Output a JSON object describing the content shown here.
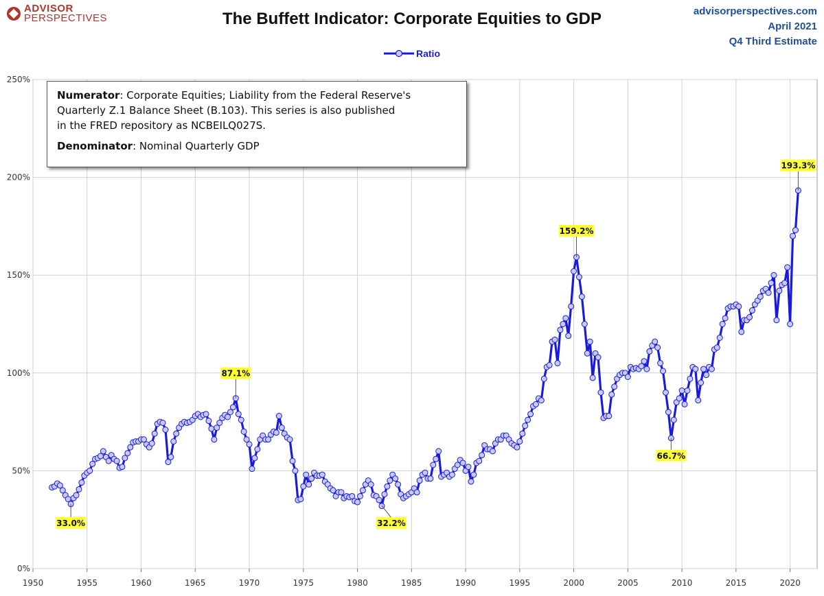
{
  "header": {
    "logo_line1": "ADVISOR",
    "logo_line2": "PERSPECTIVES",
    "site": "advisorperspectives.com",
    "date": "April 2021",
    "estimate": "Q4 Third Estimate"
  },
  "note": {
    "numerator_label": "Numerator",
    "numerator_line1": ": Corporate Equities; Liability from the Federal Reserve's",
    "numerator_line2": "Quarterly Z.1 Balance Sheet (B.103). This series is also published",
    "numerator_line3": "in the FRED repository  as NCBEILQ027S.",
    "denominator_label": "Denominator",
    "denominator_text": ": Nominal Quarterly GDP"
  },
  "colors": {
    "series": "#1a1adf",
    "marker_fill": "#c5c9ff",
    "annotation_bg": "#ffff33",
    "grid": "#d0d0d0",
    "meta_text": "#1f4e9c"
  },
  "chart_data": {
    "type": "line",
    "title": "The Buffett Indicator: Corporate Equities to GDP",
    "xlabel": "",
    "ylabel": "",
    "xlim": [
      1950,
      2022.5
    ],
    "ylim": [
      0,
      2.5
    ],
    "x_ticks": [
      1950,
      1955,
      1960,
      1965,
      1970,
      1975,
      1980,
      1985,
      1990,
      1995,
      2000,
      2005,
      2010,
      2015,
      2020
    ],
    "y_ticks": [
      0,
      0.5,
      1.0,
      1.5,
      2.0,
      2.5
    ],
    "y_tick_labels": [
      "0%",
      "50%",
      "100%",
      "150%",
      "200%",
      "250%"
    ],
    "grid": true,
    "legend_position": "top-center",
    "series": [
      {
        "name": "Ratio",
        "points": [
          [
            1951.75,
            0.415
          ],
          [
            1952.0,
            0.42
          ],
          [
            1952.25,
            0.435
          ],
          [
            1952.5,
            0.425
          ],
          [
            1952.75,
            0.4
          ],
          [
            1953.0,
            0.375
          ],
          [
            1953.25,
            0.355
          ],
          [
            1953.5,
            0.33
          ],
          [
            1953.75,
            0.36
          ],
          [
            1954.0,
            0.375
          ],
          [
            1954.25,
            0.405
          ],
          [
            1954.5,
            0.44
          ],
          [
            1954.75,
            0.475
          ],
          [
            1955.0,
            0.49
          ],
          [
            1955.25,
            0.5
          ],
          [
            1955.5,
            0.535
          ],
          [
            1955.75,
            0.56
          ],
          [
            1956.0,
            0.565
          ],
          [
            1956.25,
            0.575
          ],
          [
            1956.5,
            0.6
          ],
          [
            1956.75,
            0.57
          ],
          [
            1957.0,
            0.55
          ],
          [
            1957.25,
            0.58
          ],
          [
            1957.5,
            0.56
          ],
          [
            1957.75,
            0.55
          ],
          [
            1958.0,
            0.515
          ],
          [
            1958.25,
            0.52
          ],
          [
            1958.5,
            0.565
          ],
          [
            1958.75,
            0.59
          ],
          [
            1959.0,
            0.62
          ],
          [
            1959.25,
            0.645
          ],
          [
            1959.5,
            0.65
          ],
          [
            1959.75,
            0.65
          ],
          [
            1960.0,
            0.66
          ],
          [
            1960.25,
            0.66
          ],
          [
            1960.5,
            0.635
          ],
          [
            1960.75,
            0.62
          ],
          [
            1961.0,
            0.64
          ],
          [
            1961.25,
            0.69
          ],
          [
            1961.5,
            0.74
          ],
          [
            1961.75,
            0.75
          ],
          [
            1962.0,
            0.745
          ],
          [
            1962.25,
            0.71
          ],
          [
            1962.5,
            0.545
          ],
          [
            1962.75,
            0.57
          ],
          [
            1963.0,
            0.65
          ],
          [
            1963.25,
            0.69
          ],
          [
            1963.5,
            0.72
          ],
          [
            1963.75,
            0.74
          ],
          [
            1964.0,
            0.75
          ],
          [
            1964.25,
            0.745
          ],
          [
            1964.5,
            0.75
          ],
          [
            1964.75,
            0.76
          ],
          [
            1965.0,
            0.78
          ],
          [
            1965.25,
            0.79
          ],
          [
            1965.5,
            0.775
          ],
          [
            1965.75,
            0.785
          ],
          [
            1966.0,
            0.79
          ],
          [
            1966.25,
            0.755
          ],
          [
            1966.5,
            0.715
          ],
          [
            1966.75,
            0.66
          ],
          [
            1967.0,
            0.72
          ],
          [
            1967.25,
            0.745
          ],
          [
            1967.5,
            0.77
          ],
          [
            1967.75,
            0.785
          ],
          [
            1968.0,
            0.775
          ],
          [
            1968.25,
            0.8
          ],
          [
            1968.5,
            0.825
          ],
          [
            1968.75,
            0.871
          ],
          [
            1969.0,
            0.79
          ],
          [
            1969.25,
            0.76
          ],
          [
            1969.5,
            0.7
          ],
          [
            1969.75,
            0.66
          ],
          [
            1970.0,
            0.635
          ],
          [
            1970.25,
            0.51
          ],
          [
            1970.5,
            0.565
          ],
          [
            1970.75,
            0.61
          ],
          [
            1971.0,
            0.66
          ],
          [
            1971.25,
            0.68
          ],
          [
            1971.5,
            0.66
          ],
          [
            1971.75,
            0.66
          ],
          [
            1972.0,
            0.685
          ],
          [
            1972.25,
            0.7
          ],
          [
            1972.5,
            0.695
          ],
          [
            1972.75,
            0.78
          ],
          [
            1973.0,
            0.72
          ],
          [
            1973.25,
            0.69
          ],
          [
            1973.5,
            0.67
          ],
          [
            1973.75,
            0.66
          ],
          [
            1974.0,
            0.55
          ],
          [
            1974.25,
            0.5
          ],
          [
            1974.5,
            0.35
          ],
          [
            1974.75,
            0.355
          ],
          [
            1975.0,
            0.42
          ],
          [
            1975.25,
            0.48
          ],
          [
            1975.5,
            0.43
          ],
          [
            1975.75,
            0.46
          ],
          [
            1976.0,
            0.49
          ],
          [
            1976.25,
            0.475
          ],
          [
            1976.5,
            0.475
          ],
          [
            1976.75,
            0.48
          ],
          [
            1977.0,
            0.445
          ],
          [
            1977.25,
            0.43
          ],
          [
            1977.5,
            0.41
          ],
          [
            1977.75,
            0.4
          ],
          [
            1978.0,
            0.37
          ],
          [
            1978.25,
            0.39
          ],
          [
            1978.5,
            0.39
          ],
          [
            1978.75,
            0.36
          ],
          [
            1979.0,
            0.37
          ],
          [
            1979.25,
            0.365
          ],
          [
            1979.5,
            0.37
          ],
          [
            1979.75,
            0.345
          ],
          [
            1980.0,
            0.34
          ],
          [
            1980.25,
            0.37
          ],
          [
            1980.5,
            0.4
          ],
          [
            1980.75,
            0.43
          ],
          [
            1981.0,
            0.45
          ],
          [
            1981.25,
            0.43
          ],
          [
            1981.5,
            0.375
          ],
          [
            1981.75,
            0.37
          ],
          [
            1982.0,
            0.35
          ],
          [
            1982.25,
            0.32
          ],
          [
            1982.5,
            0.38
          ],
          [
            1982.75,
            0.42
          ],
          [
            1983.0,
            0.45
          ],
          [
            1983.25,
            0.48
          ],
          [
            1983.5,
            0.46
          ],
          [
            1983.75,
            0.43
          ],
          [
            1984.0,
            0.38
          ],
          [
            1984.25,
            0.36
          ],
          [
            1984.5,
            0.37
          ],
          [
            1984.75,
            0.38
          ],
          [
            1985.0,
            0.39
          ],
          [
            1985.25,
            0.41
          ],
          [
            1985.5,
            0.39
          ],
          [
            1985.75,
            0.45
          ],
          [
            1986.0,
            0.48
          ],
          [
            1986.25,
            0.49
          ],
          [
            1986.5,
            0.46
          ],
          [
            1986.75,
            0.46
          ],
          [
            1987.0,
            0.53
          ],
          [
            1987.25,
            0.56
          ],
          [
            1987.5,
            0.6
          ],
          [
            1987.75,
            0.47
          ],
          [
            1988.0,
            0.48
          ],
          [
            1988.25,
            0.49
          ],
          [
            1988.5,
            0.47
          ],
          [
            1988.75,
            0.48
          ],
          [
            1989.0,
            0.51
          ],
          [
            1989.25,
            0.53
          ],
          [
            1989.5,
            0.555
          ],
          [
            1989.75,
            0.54
          ],
          [
            1990.0,
            0.5
          ],
          [
            1990.25,
            0.52
          ],
          [
            1990.5,
            0.445
          ],
          [
            1990.75,
            0.48
          ],
          [
            1991.0,
            0.54
          ],
          [
            1991.25,
            0.55
          ],
          [
            1991.5,
            0.58
          ],
          [
            1991.75,
            0.63
          ],
          [
            1992.0,
            0.61
          ],
          [
            1992.25,
            0.61
          ],
          [
            1992.5,
            0.6
          ],
          [
            1992.75,
            0.64
          ],
          [
            1993.0,
            0.66
          ],
          [
            1993.25,
            0.66
          ],
          [
            1993.5,
            0.68
          ],
          [
            1993.75,
            0.68
          ],
          [
            1994.0,
            0.66
          ],
          [
            1994.25,
            0.64
          ],
          [
            1994.5,
            0.63
          ],
          [
            1994.75,
            0.62
          ],
          [
            1995.0,
            0.65
          ],
          [
            1995.25,
            0.69
          ],
          [
            1995.5,
            0.73
          ],
          [
            1995.75,
            0.76
          ],
          [
            1996.0,
            0.79
          ],
          [
            1996.25,
            0.83
          ],
          [
            1996.5,
            0.84
          ],
          [
            1996.75,
            0.87
          ],
          [
            1997.0,
            0.86
          ],
          [
            1997.25,
            0.97
          ],
          [
            1997.5,
            1.03
          ],
          [
            1997.75,
            1.04
          ],
          [
            1998.0,
            1.16
          ],
          [
            1998.25,
            1.17
          ],
          [
            1998.5,
            1.05
          ],
          [
            1998.75,
            1.22
          ],
          [
            1999.0,
            1.25
          ],
          [
            1999.25,
            1.28
          ],
          [
            1999.5,
            1.19
          ],
          [
            1999.75,
            1.34
          ],
          [
            2000.0,
            1.52
          ],
          [
            2000.25,
            1.592
          ],
          [
            2000.5,
            1.49
          ],
          [
            2000.75,
            1.39
          ],
          [
            2001.0,
            1.25
          ],
          [
            2001.25,
            1.1
          ],
          [
            2001.5,
            1.16
          ],
          [
            2001.75,
            0.975
          ],
          [
            2002.0,
            1.1
          ],
          [
            2002.25,
            1.08
          ],
          [
            2002.5,
            0.9
          ],
          [
            2002.75,
            0.77
          ],
          [
            2003.0,
            0.78
          ],
          [
            2003.25,
            0.78
          ],
          [
            2003.5,
            0.89
          ],
          [
            2003.75,
            0.93
          ],
          [
            2004.0,
            0.97
          ],
          [
            2004.25,
            0.99
          ],
          [
            2004.5,
            1.0
          ],
          [
            2004.75,
            1.0
          ],
          [
            2005.0,
            0.98
          ],
          [
            2005.25,
            1.03
          ],
          [
            2005.5,
            1.02
          ],
          [
            2005.75,
            1.025
          ],
          [
            2006.0,
            1.02
          ],
          [
            2006.25,
            1.035
          ],
          [
            2006.5,
            1.06
          ],
          [
            2006.75,
            1.02
          ],
          [
            2007.0,
            1.11
          ],
          [
            2007.25,
            1.14
          ],
          [
            2007.5,
            1.16
          ],
          [
            2007.75,
            1.13
          ],
          [
            2008.0,
            1.05
          ],
          [
            2008.25,
            1.01
          ],
          [
            2008.5,
            0.9
          ],
          [
            2008.75,
            0.8
          ],
          [
            2009.0,
            0.667
          ],
          [
            2009.25,
            0.76
          ],
          [
            2009.5,
            0.85
          ],
          [
            2009.75,
            0.87
          ],
          [
            2010.0,
            0.91
          ],
          [
            2010.25,
            0.84
          ],
          [
            2010.5,
            0.91
          ],
          [
            2010.75,
            0.97
          ],
          [
            2011.0,
            1.03
          ],
          [
            2011.25,
            1.02
          ],
          [
            2011.5,
            0.86
          ],
          [
            2011.75,
            0.95
          ],
          [
            2012.0,
            1.02
          ],
          [
            2012.25,
            0.99
          ],
          [
            2012.5,
            1.03
          ],
          [
            2012.75,
            1.02
          ],
          [
            2013.0,
            1.12
          ],
          [
            2013.25,
            1.13
          ],
          [
            2013.5,
            1.18
          ],
          [
            2013.75,
            1.25
          ],
          [
            2014.0,
            1.28
          ],
          [
            2014.25,
            1.33
          ],
          [
            2014.5,
            1.34
          ],
          [
            2014.75,
            1.34
          ],
          [
            2015.0,
            1.35
          ],
          [
            2015.25,
            1.34
          ],
          [
            2015.5,
            1.21
          ],
          [
            2015.75,
            1.27
          ],
          [
            2016.0,
            1.27
          ],
          [
            2016.25,
            1.285
          ],
          [
            2016.5,
            1.32
          ],
          [
            2016.75,
            1.35
          ],
          [
            2017.0,
            1.37
          ],
          [
            2017.25,
            1.39
          ],
          [
            2017.5,
            1.42
          ],
          [
            2017.75,
            1.43
          ],
          [
            2018.0,
            1.41
          ],
          [
            2018.25,
            1.46
          ],
          [
            2018.5,
            1.5
          ],
          [
            2018.75,
            1.27
          ],
          [
            2019.0,
            1.42
          ],
          [
            2019.25,
            1.45
          ],
          [
            2019.5,
            1.46
          ],
          [
            2019.75,
            1.54
          ],
          [
            2020.0,
            1.25
          ],
          [
            2020.25,
            1.7
          ],
          [
            2020.5,
            1.73
          ],
          [
            2020.75,
            1.933
          ]
        ]
      }
    ],
    "annotations": [
      {
        "text": "33.0%",
        "x": 1953.5,
        "y": 0.33
      },
      {
        "text": "87.1%",
        "x": 1968.75,
        "y": 0.871
      },
      {
        "text": "32.2%",
        "x": 1982.25,
        "y": 0.322
      },
      {
        "text": "159.2%",
        "x": 2000.25,
        "y": 1.592
      },
      {
        "text": "66.7%",
        "x": 2009.0,
        "y": 0.667
      },
      {
        "text": "193.3%",
        "x": 2020.75,
        "y": 1.933
      }
    ]
  }
}
